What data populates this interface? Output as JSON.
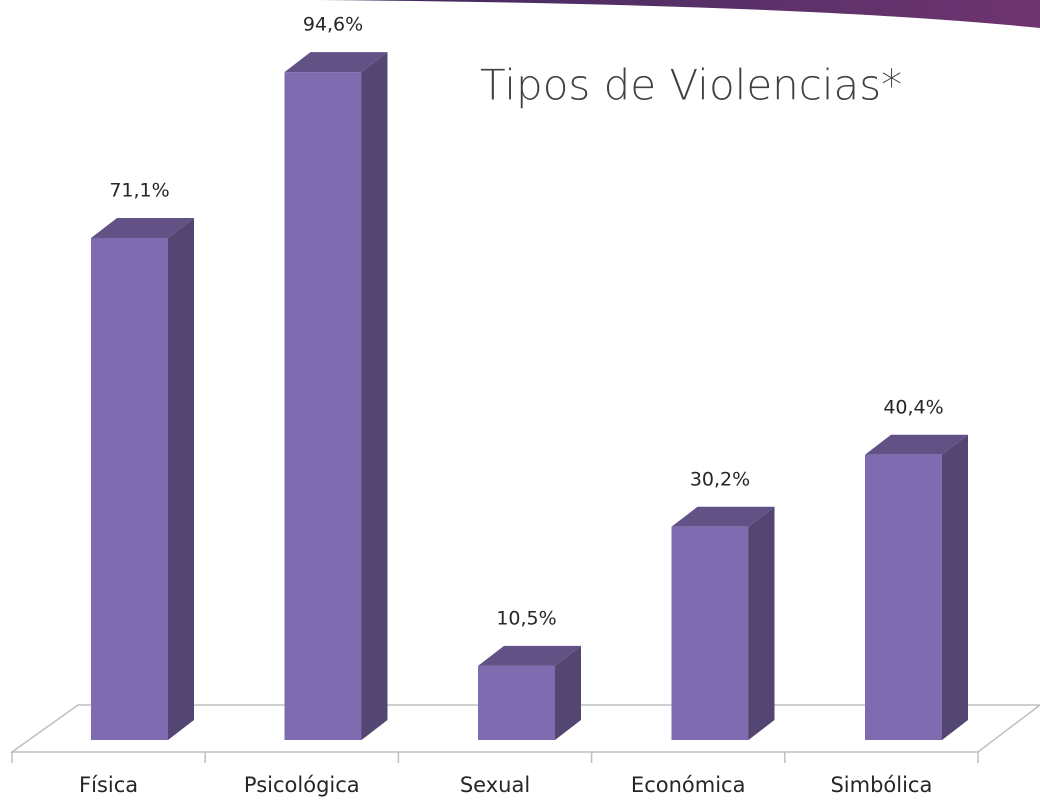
{
  "chart_data": {
    "type": "bar3d",
    "title": "Tipos de Violencias*",
    "categories": [
      "Física",
      "Psicológica",
      "Sexual",
      "Económica",
      "Simbólica"
    ],
    "values": [
      71.1,
      94.6,
      10.5,
      30.2,
      40.4
    ],
    "value_labels": [
      "71,1%",
      "94,6%",
      "10,5%",
      "30,2%",
      "40,4%"
    ],
    "color": "#7f6baf"
  }
}
